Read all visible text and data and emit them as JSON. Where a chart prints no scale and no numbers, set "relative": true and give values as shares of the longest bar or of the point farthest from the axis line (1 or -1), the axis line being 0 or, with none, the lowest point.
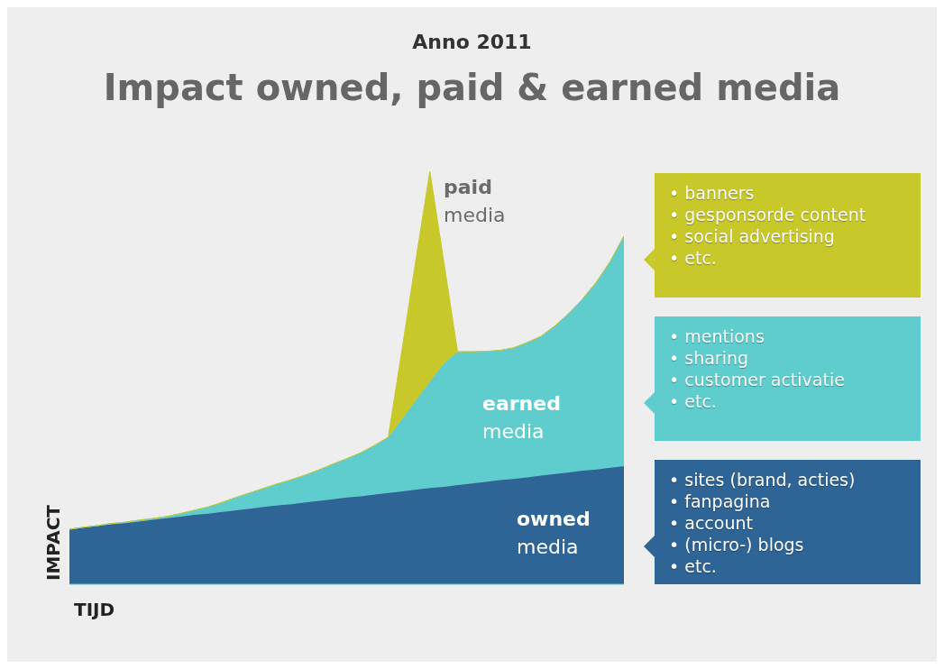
{
  "chart_data": {
    "type": "area",
    "title": "Impact owned, paid & earned media",
    "subtitle": "Anno 2011",
    "xlabel": "TIJD",
    "ylabel": "IMPACT",
    "relative": true,
    "stacked": true,
    "legend": false,
    "grid": false,
    "categories": [
      null,
      null,
      null,
      null,
      null,
      null,
      null,
      null,
      null,
      null,
      null,
      null,
      null,
      null,
      null,
      null,
      null,
      null,
      null,
      null,
      null,
      null,
      null,
      null,
      null,
      null,
      null,
      null,
      null,
      null,
      null,
      null,
      null,
      null,
      null,
      null,
      null,
      null,
      null,
      null,
      null
    ],
    "series": [
      {
        "name": "owned media",
        "color": "#2e6496",
        "values": [
          0.133,
          0.137,
          0.141,
          0.145,
          0.148,
          0.152,
          0.156,
          0.16,
          0.164,
          0.168,
          0.171,
          0.175,
          0.179,
          0.183,
          0.187,
          0.191,
          0.194,
          0.198,
          0.202,
          0.206,
          0.21,
          0.213,
          0.217,
          0.221,
          0.225,
          0.229,
          0.233,
          0.236,
          0.24,
          0.244,
          0.248,
          0.252,
          0.255,
          0.259,
          0.263,
          0.267,
          0.271,
          0.275,
          0.278,
          0.282,
          0.286
        ]
      },
      {
        "name": "earned media",
        "color": "#5fcdcd",
        "values": [
          0,
          0.001,
          0.001,
          0.002,
          0.002,
          0.003,
          0.003,
          0.004,
          0.007,
          0.011,
          0.016,
          0.023,
          0.031,
          0.038,
          0.045,
          0.052,
          0.059,
          0.066,
          0.075,
          0.085,
          0.094,
          0.105,
          0.119,
          0.135,
          0.175,
          0.217,
          0.257,
          0.299,
          0.323,
          0.319,
          0.316,
          0.314,
          0.317,
          0.326,
          0.337,
          0.358,
          0.384,
          0.415,
          0.453,
          0.499,
          0.557
        ]
      },
      {
        "name": "paid media",
        "color": "#c8c82a",
        "values": [
          0,
          0,
          0,
          0,
          0,
          0,
          0,
          0,
          0,
          0,
          0,
          0,
          0,
          0,
          0,
          0,
          0,
          0,
          0,
          0,
          0,
          0,
          0,
          0,
          0.17,
          0.341,
          0.51,
          0.247,
          0,
          0,
          0,
          0,
          0,
          0,
          0,
          0,
          0,
          0,
          0,
          0,
          0
        ]
      }
    ],
    "annotations": [
      "• banners\n• gesponsorde content\n• social advertising\n• etc.",
      "• mentions\n• sharing\n• customer activatie\n• etc.",
      "• sites (brand, acties)\n• fanpagina\n• account\n• (micro-) blogs\n• etc."
    ]
  }
}
